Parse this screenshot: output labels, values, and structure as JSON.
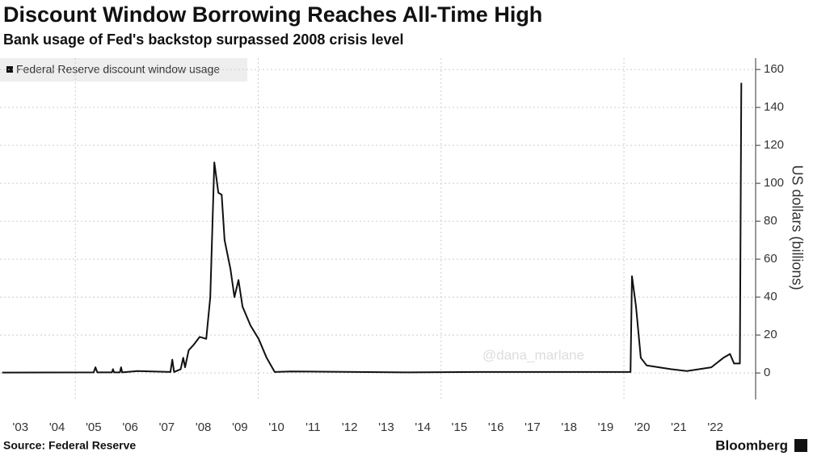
{
  "chart_data": {
    "type": "line",
    "title": "Discount Window Borrowing Reaches All-Time High",
    "subtitle": "Bank usage of Fed's backstop surpassed 2008 crisis level",
    "y_label": "US dollars (billions)",
    "source": "Source: Federal Reserve",
    "brand": "Bloomberg",
    "watermark": "@dana_marlane",
    "legend": "top-left",
    "grid": true,
    "xlim": [
      2002.94,
      2023.6
    ],
    "ylim": [
      -14,
      166
    ],
    "yticks": [
      0,
      20,
      40,
      60,
      80,
      100,
      120,
      140,
      160
    ],
    "xgrid": [
      2005,
      2010,
      2015,
      2020
    ],
    "xticks": [
      {
        "value": 2003.5,
        "label": "'03"
      },
      {
        "value": 2004.5,
        "label": "'04"
      },
      {
        "value": 2005.5,
        "label": "'05"
      },
      {
        "value": 2006.5,
        "label": "'06"
      },
      {
        "value": 2007.5,
        "label": "'07"
      },
      {
        "value": 2008.5,
        "label": "'08"
      },
      {
        "value": 2009.5,
        "label": "'09"
      },
      {
        "value": 2010.5,
        "label": "'10"
      },
      {
        "value": 2011.5,
        "label": "'11"
      },
      {
        "value": 2012.5,
        "label": "'12"
      },
      {
        "value": 2013.5,
        "label": "'13"
      },
      {
        "value": 2014.5,
        "label": "'14"
      },
      {
        "value": 2015.5,
        "label": "'15"
      },
      {
        "value": 2016.5,
        "label": "'16"
      },
      {
        "value": 2017.5,
        "label": "'17"
      },
      {
        "value": 2018.5,
        "label": "'18"
      },
      {
        "value": 2019.5,
        "label": "'19"
      },
      {
        "value": 2020.5,
        "label": "'20"
      },
      {
        "value": 2021.5,
        "label": "'21"
      },
      {
        "value": 2022.5,
        "label": "'22"
      }
    ],
    "x": [
      2003.0,
      2005.5,
      2005.55,
      2005.6,
      2006.0,
      2006.03,
      2006.06,
      2006.22,
      2006.25,
      2006.28,
      2006.7,
      2007.6,
      2007.65,
      2007.7,
      2007.88,
      2007.95,
      2008.0,
      2008.1,
      2008.24,
      2008.4,
      2008.58,
      2008.69,
      2008.8,
      2008.91,
      2009.0,
      2009.08,
      2009.24,
      2009.35,
      2009.46,
      2009.57,
      2009.79,
      2010.01,
      2010.23,
      2010.45,
      2010.9,
      2013.99,
      2015.98,
      2020.18,
      2020.22,
      2020.33,
      2020.46,
      2020.62,
      2021.28,
      2021.72,
      2022.39,
      2022.72,
      2022.9,
      2023.01,
      2023.17,
      2023.21
    ],
    "series": [
      {
        "name": "Federal Reserve discount window usage",
        "color": "#111111",
        "values": [
          0.2,
          0.3,
          3,
          0.3,
          0.3,
          2,
          0.3,
          0.3,
          3,
          0.3,
          1,
          0.5,
          7,
          0.5,
          2,
          8,
          3,
          12,
          15,
          19,
          18,
          40,
          111,
          95,
          94,
          70,
          55,
          40,
          49,
          35,
          25,
          18,
          8,
          0.5,
          0.8,
          0.3,
          0.5,
          0.5,
          51,
          35,
          8,
          4,
          2,
          1,
          3,
          8,
          10,
          5,
          5,
          153
        ]
      }
    ]
  }
}
